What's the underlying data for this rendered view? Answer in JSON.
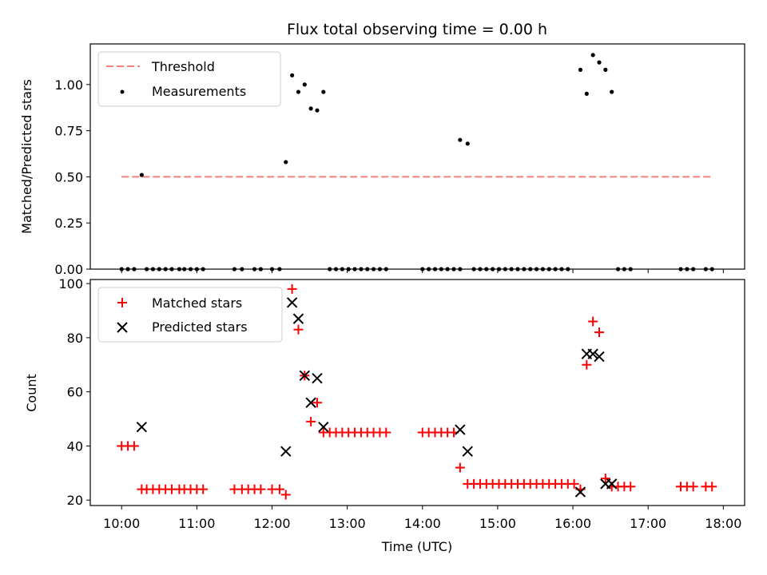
{
  "chart_data": [
    {
      "type": "scatter",
      "title": "Flux total observing time = 0.00 h",
      "xlabel": "",
      "ylabel": "Matched/Predicted stars",
      "ylim": [
        0,
        1.22
      ],
      "xlim": [
        "09:35",
        "18:17"
      ],
      "yticks": [
        "0.00",
        "0.25",
        "0.50",
        "0.75",
        "1.00"
      ],
      "legend_position": "top-left",
      "threshold": {
        "name": "Threshold",
        "y": 0.5,
        "x_start": "10:00",
        "x_end": "17:50",
        "color": "#f47f7f",
        "style": "dashed"
      },
      "series": [
        {
          "name": "Measurements",
          "color": "#000000",
          "marker": "dot",
          "points": [
            [
              "10:00",
              0
            ],
            [
              "10:05",
              0
            ],
            [
              "10:10",
              0
            ],
            [
              "10:16",
              0.51
            ],
            [
              "10:20",
              0
            ],
            [
              "10:25",
              0
            ],
            [
              "10:30",
              0
            ],
            [
              "10:35",
              0
            ],
            [
              "10:40",
              0
            ],
            [
              "10:46",
              0
            ],
            [
              "10:50",
              0
            ],
            [
              "10:55",
              0
            ],
            [
              "11:00",
              0
            ],
            [
              "11:05",
              0
            ],
            [
              "11:30",
              0
            ],
            [
              "11:36",
              0
            ],
            [
              "11:46",
              0
            ],
            [
              "11:51",
              0
            ],
            [
              "12:00",
              0
            ],
            [
              "12:06",
              0
            ],
            [
              "12:11",
              0.58
            ],
            [
              "12:16",
              1.05
            ],
            [
              "12:21",
              0.96
            ],
            [
              "12:26",
              1.0
            ],
            [
              "12:31",
              0.87
            ],
            [
              "12:36",
              0.86
            ],
            [
              "12:41",
              0.96
            ],
            [
              "12:46",
              0
            ],
            [
              "12:51",
              0
            ],
            [
              "12:56",
              0
            ],
            [
              "13:01",
              0
            ],
            [
              "13:06",
              0
            ],
            [
              "13:11",
              0
            ],
            [
              "13:16",
              0
            ],
            [
              "13:21",
              0
            ],
            [
              "13:26",
              0
            ],
            [
              "13:31",
              0
            ],
            [
              "14:00",
              0
            ],
            [
              "14:05",
              0
            ],
            [
              "14:10",
              0
            ],
            [
              "14:15",
              0
            ],
            [
              "14:20",
              0
            ],
            [
              "14:25",
              0
            ],
            [
              "14:30",
              0
            ],
            [
              "14:30",
              0.7
            ],
            [
              "14:36",
              0.68
            ],
            [
              "14:41",
              0
            ],
            [
              "14:46",
              0
            ],
            [
              "14:51",
              0
            ],
            [
              "14:56",
              0
            ],
            [
              "15:01",
              0
            ],
            [
              "15:06",
              0
            ],
            [
              "15:11",
              0
            ],
            [
              "15:16",
              0
            ],
            [
              "15:21",
              0
            ],
            [
              "15:26",
              0
            ],
            [
              "15:31",
              0
            ],
            [
              "15:36",
              0
            ],
            [
              "15:41",
              0
            ],
            [
              "15:46",
              0
            ],
            [
              "15:51",
              0
            ],
            [
              "15:56",
              0
            ],
            [
              "16:06",
              1.08
            ],
            [
              "16:11",
              0.95
            ],
            [
              "16:16",
              1.16
            ],
            [
              "16:21",
              1.12
            ],
            [
              "16:26",
              1.08
            ],
            [
              "16:31",
              0.96
            ],
            [
              "16:36",
              0
            ],
            [
              "16:41",
              0
            ],
            [
              "16:46",
              0
            ],
            [
              "17:26",
              0
            ],
            [
              "17:31",
              0
            ],
            [
              "17:36",
              0
            ],
            [
              "17:46",
              0
            ],
            [
              "17:51",
              0
            ]
          ]
        }
      ]
    },
    {
      "type": "scatter",
      "title": "",
      "xlabel": "Time (UTC)",
      "ylabel": "Count",
      "ylim": [
        18,
        101.5
      ],
      "xlim": [
        "09:35",
        "18:17"
      ],
      "xticks": [
        "10:00",
        "11:00",
        "12:00",
        "13:00",
        "14:00",
        "15:00",
        "16:00",
        "17:00",
        "18:00"
      ],
      "yticks": [
        "20",
        "40",
        "60",
        "80",
        "100"
      ],
      "legend_position": "top-left",
      "series": [
        {
          "name": "Matched stars",
          "color": "#ff0000",
          "marker": "plus",
          "points": [
            [
              "10:00",
              40
            ],
            [
              "10:05",
              40
            ],
            [
              "10:10",
              40
            ],
            [
              "10:16",
              24
            ],
            [
              "10:20",
              24
            ],
            [
              "10:25",
              24
            ],
            [
              "10:30",
              24
            ],
            [
              "10:35",
              24
            ],
            [
              "10:40",
              24
            ],
            [
              "10:46",
              24
            ],
            [
              "10:50",
              24
            ],
            [
              "10:55",
              24
            ],
            [
              "11:00",
              24
            ],
            [
              "11:05",
              24
            ],
            [
              "11:30",
              24
            ],
            [
              "11:36",
              24
            ],
            [
              "11:41",
              24
            ],
            [
              "11:46",
              24
            ],
            [
              "11:51",
              24
            ],
            [
              "12:00",
              24
            ],
            [
              "12:06",
              24
            ],
            [
              "12:11",
              22
            ],
            [
              "12:16",
              98
            ],
            [
              "12:21",
              83
            ],
            [
              "12:26",
              66
            ],
            [
              "12:31",
              49
            ],
            [
              "12:36",
              56
            ],
            [
              "12:41",
              45
            ],
            [
              "12:46",
              45
            ],
            [
              "12:51",
              45
            ],
            [
              "12:56",
              45
            ],
            [
              "13:01",
              45
            ],
            [
              "13:06",
              45
            ],
            [
              "13:11",
              45
            ],
            [
              "13:16",
              45
            ],
            [
              "13:21",
              45
            ],
            [
              "13:26",
              45
            ],
            [
              "13:31",
              45
            ],
            [
              "14:00",
              45
            ],
            [
              "14:05",
              45
            ],
            [
              "14:10",
              45
            ],
            [
              "14:15",
              45
            ],
            [
              "14:20",
              45
            ],
            [
              "14:25",
              45
            ],
            [
              "14:30",
              32
            ],
            [
              "14:36",
              26
            ],
            [
              "14:41",
              26
            ],
            [
              "14:46",
              26
            ],
            [
              "14:51",
              26
            ],
            [
              "14:56",
              26
            ],
            [
              "15:01",
              26
            ],
            [
              "15:06",
              26
            ],
            [
              "15:11",
              26
            ],
            [
              "15:16",
              26
            ],
            [
              "15:21",
              26
            ],
            [
              "15:26",
              26
            ],
            [
              "15:31",
              26
            ],
            [
              "15:36",
              26
            ],
            [
              "15:41",
              26
            ],
            [
              "15:46",
              26
            ],
            [
              "15:51",
              26
            ],
            [
              "15:56",
              26
            ],
            [
              "16:01",
              26
            ],
            [
              "16:06",
              24
            ],
            [
              "16:11",
              70
            ],
            [
              "16:16",
              86
            ],
            [
              "16:21",
              82
            ],
            [
              "16:26",
              28
            ],
            [
              "16:31",
              25
            ],
            [
              "16:36",
              25
            ],
            [
              "16:41",
              25
            ],
            [
              "16:46",
              25
            ],
            [
              "17:26",
              25
            ],
            [
              "17:31",
              25
            ],
            [
              "17:36",
              25
            ],
            [
              "17:46",
              25
            ],
            [
              "17:51",
              25
            ]
          ]
        },
        {
          "name": "Predicted stars",
          "color": "#000000",
          "marker": "x",
          "points": [
            [
              "10:16",
              47
            ],
            [
              "12:11",
              38
            ],
            [
              "12:16",
              93
            ],
            [
              "12:21",
              87
            ],
            [
              "12:26",
              66
            ],
            [
              "12:31",
              56
            ],
            [
              "12:36",
              65
            ],
            [
              "12:41",
              47
            ],
            [
              "14:30",
              46
            ],
            [
              "14:36",
              38
            ],
            [
              "16:06",
              23
            ],
            [
              "16:11",
              74
            ],
            [
              "16:16",
              74
            ],
            [
              "16:21",
              73
            ],
            [
              "16:26",
              26
            ],
            [
              "16:31",
              26
            ]
          ]
        }
      ]
    }
  ]
}
